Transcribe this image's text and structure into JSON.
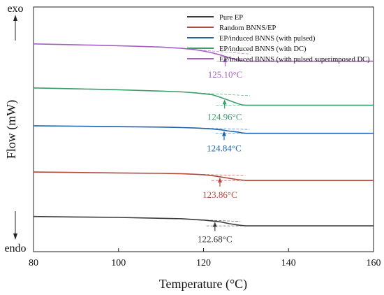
{
  "chart_data": {
    "type": "line",
    "xlabel": "Temperature (°C)",
    "ylabel": "Flow (mW)",
    "y_top_label": "exo",
    "y_bottom_label": "endo",
    "xlim": [
      80,
      160
    ],
    "xticks": [
      80,
      100,
      120,
      140,
      160
    ],
    "y_ticks_shown": false,
    "grid": false,
    "legend_position": "top-right",
    "series": [
      {
        "name": "Pure EP",
        "color": "#3a3a3a",
        "tg_label": "122.68°C",
        "tg_x": 122.68,
        "x": [
          80,
          90,
          100,
          110,
          115,
          118,
          120,
          122,
          124,
          126,
          128,
          129,
          130,
          131,
          132,
          135,
          140,
          145,
          150,
          155,
          160
        ],
        "y": [
          0.79,
          0.78,
          0.77,
          0.75,
          0.74,
          0.72,
          0.71,
          0.69,
          0.67,
          0.63,
          0.6,
          0.59,
          0.58,
          0.58,
          0.58,
          0.58,
          0.58,
          0.58,
          0.58,
          0.58,
          0.58
        ]
      },
      {
        "name": "Random BNNS/EP",
        "color": "#b04a3c",
        "tg_label": "123.86°C",
        "tg_x": 123.86,
        "x": [
          80,
          90,
          100,
          110,
          115,
          118,
          120,
          122,
          124,
          126,
          128,
          129,
          130,
          131,
          132,
          135,
          140,
          145,
          150,
          155,
          160
        ],
        "y": [
          1.79,
          1.78,
          1.77,
          1.76,
          1.75,
          1.74,
          1.73,
          1.71,
          1.68,
          1.65,
          1.62,
          1.61,
          1.6,
          1.6,
          1.6,
          1.6,
          1.6,
          1.6,
          1.6,
          1.6,
          1.6
        ]
      },
      {
        "name": "EP/induced BNNS (with pulsed)",
        "color": "#1f63ad",
        "tg_label": "124.84°C",
        "tg_x": 124.84,
        "x": [
          80,
          90,
          100,
          110,
          115,
          118,
          120,
          122,
          124,
          126,
          128,
          129,
          130,
          131,
          132,
          135,
          140,
          145,
          150,
          155,
          160
        ],
        "y": [
          2.83,
          2.82,
          2.81,
          2.8,
          2.79,
          2.78,
          2.77,
          2.76,
          2.74,
          2.71,
          2.69,
          2.67,
          2.66,
          2.66,
          2.66,
          2.66,
          2.66,
          2.66,
          2.66,
          2.66,
          2.66
        ]
      },
      {
        "name": "EP/induced BNNS (with DC)",
        "color": "#3a9d6a",
        "tg_label": "124.96°C",
        "tg_x": 124.96,
        "x": [
          80,
          90,
          100,
          110,
          115,
          118,
          120,
          122,
          124,
          126,
          128,
          129,
          130,
          131,
          132,
          135,
          140,
          145,
          150,
          155,
          160
        ],
        "y": [
          3.68,
          3.66,
          3.64,
          3.61,
          3.59,
          3.57,
          3.55,
          3.53,
          3.47,
          3.4,
          3.33,
          3.3,
          3.29,
          3.29,
          3.29,
          3.29,
          3.29,
          3.29,
          3.29,
          3.29,
          3.29
        ]
      },
      {
        "name": "EP/induced BNNS (with pulsed superimposed DC)",
        "color": "#a660c4",
        "tg_label": "125.10°C",
        "tg_x": 125.1,
        "x": [
          80,
          90,
          100,
          110,
          115,
          118,
          120,
          122,
          124,
          126,
          128,
          129,
          130,
          131,
          132,
          135,
          140,
          145,
          150,
          155,
          160
        ],
        "y": [
          4.67,
          4.65,
          4.63,
          4.6,
          4.57,
          4.54,
          4.51,
          4.47,
          4.42,
          4.36,
          4.31,
          4.29,
          4.28,
          4.28,
          4.28,
          4.28,
          4.28,
          4.28,
          4.28,
          4.28,
          4.28
        ]
      }
    ]
  }
}
